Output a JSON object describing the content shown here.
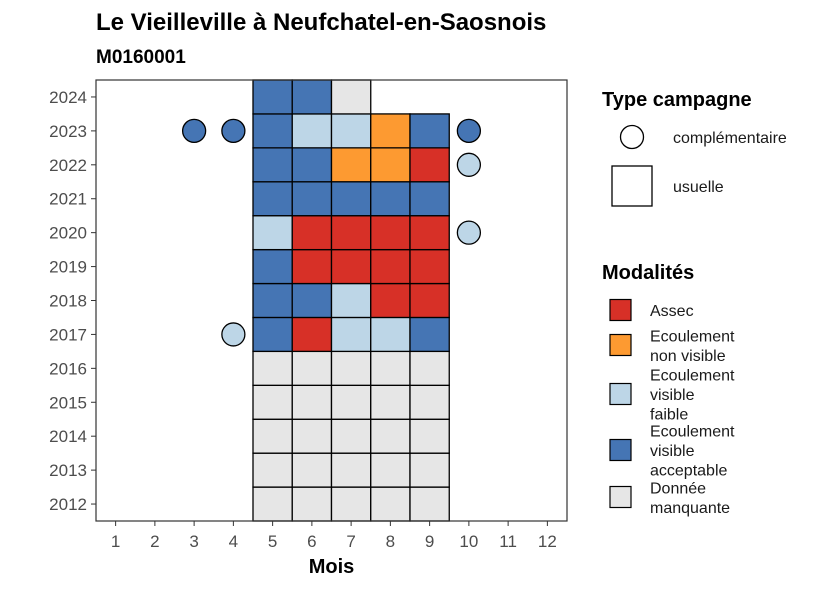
{
  "chart_data": {
    "type": "heatmap",
    "title": "Le Vieilleville à Neufchatel-en-Saosnois",
    "subtitle": "M0160001",
    "xlabel": "Mois",
    "ylabel": "",
    "x_ticks": [
      1,
      2,
      3,
      4,
      5,
      6,
      7,
      8,
      9,
      10,
      11,
      12
    ],
    "y_ticks": [
      2012,
      2013,
      2014,
      2015,
      2016,
      2017,
      2018,
      2019,
      2020,
      2021,
      2022,
      2023,
      2024
    ],
    "xlim": [
      0.5,
      12.5
    ],
    "ylim": [
      2011.5,
      2024.5
    ],
    "grid": false,
    "legend_position": "right",
    "legend_type": {
      "title": "Type campagne",
      "items": [
        {
          "key": "complementaire",
          "label": "complémentaire",
          "shape": "circle"
        },
        {
          "key": "usuelle",
          "label": "usuelle",
          "shape": "square"
        }
      ]
    },
    "legend_modalites": {
      "title": "Modalités",
      "items": [
        {
          "key": "assec",
          "lines": [
            "Assec"
          ],
          "color": "#d73027"
        },
        {
          "key": "ecoul_nv",
          "lines": [
            "Ecoulement",
            "non visible"
          ],
          "color": "#fd9a31"
        },
        {
          "key": "ecoul_vf",
          "lines": [
            "Ecoulement",
            "visible",
            "faible"
          ],
          "color": "#bdd6e7"
        },
        {
          "key": "ecoul_va",
          "lines": [
            "Ecoulement",
            "visible",
            "acceptable"
          ],
          "color": "#4575b4"
        },
        {
          "key": "nd",
          "lines": [
            "Donnée",
            "manquante"
          ],
          "color": "#e6e6e6"
        }
      ]
    },
    "points": [
      {
        "year": 2012,
        "month": 5,
        "type": "usuelle",
        "modalite": "nd"
      },
      {
        "year": 2012,
        "month": 6,
        "type": "usuelle",
        "modalite": "nd"
      },
      {
        "year": 2012,
        "month": 7,
        "type": "usuelle",
        "modalite": "nd"
      },
      {
        "year": 2012,
        "month": 8,
        "type": "usuelle",
        "modalite": "nd"
      },
      {
        "year": 2012,
        "month": 9,
        "type": "usuelle",
        "modalite": "nd"
      },
      {
        "year": 2013,
        "month": 5,
        "type": "usuelle",
        "modalite": "nd"
      },
      {
        "year": 2013,
        "month": 6,
        "type": "usuelle",
        "modalite": "nd"
      },
      {
        "year": 2013,
        "month": 7,
        "type": "usuelle",
        "modalite": "nd"
      },
      {
        "year": 2013,
        "month": 8,
        "type": "usuelle",
        "modalite": "nd"
      },
      {
        "year": 2013,
        "month": 9,
        "type": "usuelle",
        "modalite": "nd"
      },
      {
        "year": 2014,
        "month": 5,
        "type": "usuelle",
        "modalite": "nd"
      },
      {
        "year": 2014,
        "month": 6,
        "type": "usuelle",
        "modalite": "nd"
      },
      {
        "year": 2014,
        "month": 7,
        "type": "usuelle",
        "modalite": "nd"
      },
      {
        "year": 2014,
        "month": 8,
        "type": "usuelle",
        "modalite": "nd"
      },
      {
        "year": 2014,
        "month": 9,
        "type": "usuelle",
        "modalite": "nd"
      },
      {
        "year": 2015,
        "month": 5,
        "type": "usuelle",
        "modalite": "nd"
      },
      {
        "year": 2015,
        "month": 6,
        "type": "usuelle",
        "modalite": "nd"
      },
      {
        "year": 2015,
        "month": 7,
        "type": "usuelle",
        "modalite": "nd"
      },
      {
        "year": 2015,
        "month": 8,
        "type": "usuelle",
        "modalite": "nd"
      },
      {
        "year": 2015,
        "month": 9,
        "type": "usuelle",
        "modalite": "nd"
      },
      {
        "year": 2016,
        "month": 5,
        "type": "usuelle",
        "modalite": "nd"
      },
      {
        "year": 2016,
        "month": 6,
        "type": "usuelle",
        "modalite": "nd"
      },
      {
        "year": 2016,
        "month": 7,
        "type": "usuelle",
        "modalite": "nd"
      },
      {
        "year": 2016,
        "month": 8,
        "type": "usuelle",
        "modalite": "nd"
      },
      {
        "year": 2016,
        "month": 9,
        "type": "usuelle",
        "modalite": "nd"
      },
      {
        "year": 2017,
        "month": 4,
        "type": "complementaire",
        "modalite": "ecoul_vf"
      },
      {
        "year": 2017,
        "month": 5,
        "type": "usuelle",
        "modalite": "ecoul_va"
      },
      {
        "year": 2017,
        "month": 6,
        "type": "usuelle",
        "modalite": "assec"
      },
      {
        "year": 2017,
        "month": 7,
        "type": "usuelle",
        "modalite": "ecoul_vf"
      },
      {
        "year": 2017,
        "month": 8,
        "type": "usuelle",
        "modalite": "ecoul_vf"
      },
      {
        "year": 2017,
        "month": 9,
        "type": "usuelle",
        "modalite": "ecoul_va"
      },
      {
        "year": 2018,
        "month": 5,
        "type": "usuelle",
        "modalite": "ecoul_va"
      },
      {
        "year": 2018,
        "month": 6,
        "type": "usuelle",
        "modalite": "ecoul_va"
      },
      {
        "year": 2018,
        "month": 7,
        "type": "usuelle",
        "modalite": "ecoul_vf"
      },
      {
        "year": 2018,
        "month": 8,
        "type": "usuelle",
        "modalite": "assec"
      },
      {
        "year": 2018,
        "month": 9,
        "type": "usuelle",
        "modalite": "assec"
      },
      {
        "year": 2019,
        "month": 5,
        "type": "usuelle",
        "modalite": "ecoul_va"
      },
      {
        "year": 2019,
        "month": 6,
        "type": "usuelle",
        "modalite": "assec"
      },
      {
        "year": 2019,
        "month": 7,
        "type": "usuelle",
        "modalite": "assec"
      },
      {
        "year": 2019,
        "month": 8,
        "type": "usuelle",
        "modalite": "assec"
      },
      {
        "year": 2019,
        "month": 9,
        "type": "usuelle",
        "modalite": "assec"
      },
      {
        "year": 2020,
        "month": 5,
        "type": "usuelle",
        "modalite": "ecoul_vf"
      },
      {
        "year": 2020,
        "month": 6,
        "type": "usuelle",
        "modalite": "assec"
      },
      {
        "year": 2020,
        "month": 7,
        "type": "usuelle",
        "modalite": "assec"
      },
      {
        "year": 2020,
        "month": 8,
        "type": "usuelle",
        "modalite": "assec"
      },
      {
        "year": 2020,
        "month": 9,
        "type": "usuelle",
        "modalite": "assec"
      },
      {
        "year": 2020,
        "month": 10,
        "type": "complementaire",
        "modalite": "ecoul_vf"
      },
      {
        "year": 2021,
        "month": 5,
        "type": "usuelle",
        "modalite": "ecoul_va"
      },
      {
        "year": 2021,
        "month": 6,
        "type": "usuelle",
        "modalite": "ecoul_va"
      },
      {
        "year": 2021,
        "month": 7,
        "type": "usuelle",
        "modalite": "ecoul_va"
      },
      {
        "year": 2021,
        "month": 8,
        "type": "usuelle",
        "modalite": "ecoul_va"
      },
      {
        "year": 2021,
        "month": 9,
        "type": "usuelle",
        "modalite": "ecoul_va"
      },
      {
        "year": 2022,
        "month": 5,
        "type": "usuelle",
        "modalite": "ecoul_va"
      },
      {
        "year": 2022,
        "month": 6,
        "type": "usuelle",
        "modalite": "ecoul_va"
      },
      {
        "year": 2022,
        "month": 7,
        "type": "usuelle",
        "modalite": "ecoul_nv"
      },
      {
        "year": 2022,
        "month": 8,
        "type": "usuelle",
        "modalite": "ecoul_nv"
      },
      {
        "year": 2022,
        "month": 9,
        "type": "usuelle",
        "modalite": "assec"
      },
      {
        "year": 2022,
        "month": 10,
        "type": "complementaire",
        "modalite": "ecoul_vf"
      },
      {
        "year": 2023,
        "month": 3,
        "type": "complementaire",
        "modalite": "ecoul_va"
      },
      {
        "year": 2023,
        "month": 4,
        "type": "complementaire",
        "modalite": "ecoul_va"
      },
      {
        "year": 2023,
        "month": 5,
        "type": "usuelle",
        "modalite": "ecoul_va"
      },
      {
        "year": 2023,
        "month": 6,
        "type": "usuelle",
        "modalite": "ecoul_vf"
      },
      {
        "year": 2023,
        "month": 7,
        "type": "usuelle",
        "modalite": "ecoul_vf"
      },
      {
        "year": 2023,
        "month": 8,
        "type": "usuelle",
        "modalite": "ecoul_nv"
      },
      {
        "year": 2023,
        "month": 9,
        "type": "usuelle",
        "modalite": "ecoul_va"
      },
      {
        "year": 2023,
        "month": 10,
        "type": "complementaire",
        "modalite": "ecoul_va"
      },
      {
        "year": 2024,
        "month": 5,
        "type": "usuelle",
        "modalite": "ecoul_va"
      },
      {
        "year": 2024,
        "month": 6,
        "type": "usuelle",
        "modalite": "ecoul_va"
      },
      {
        "year": 2024,
        "month": 7,
        "type": "usuelle",
        "modalite": "nd"
      }
    ]
  }
}
